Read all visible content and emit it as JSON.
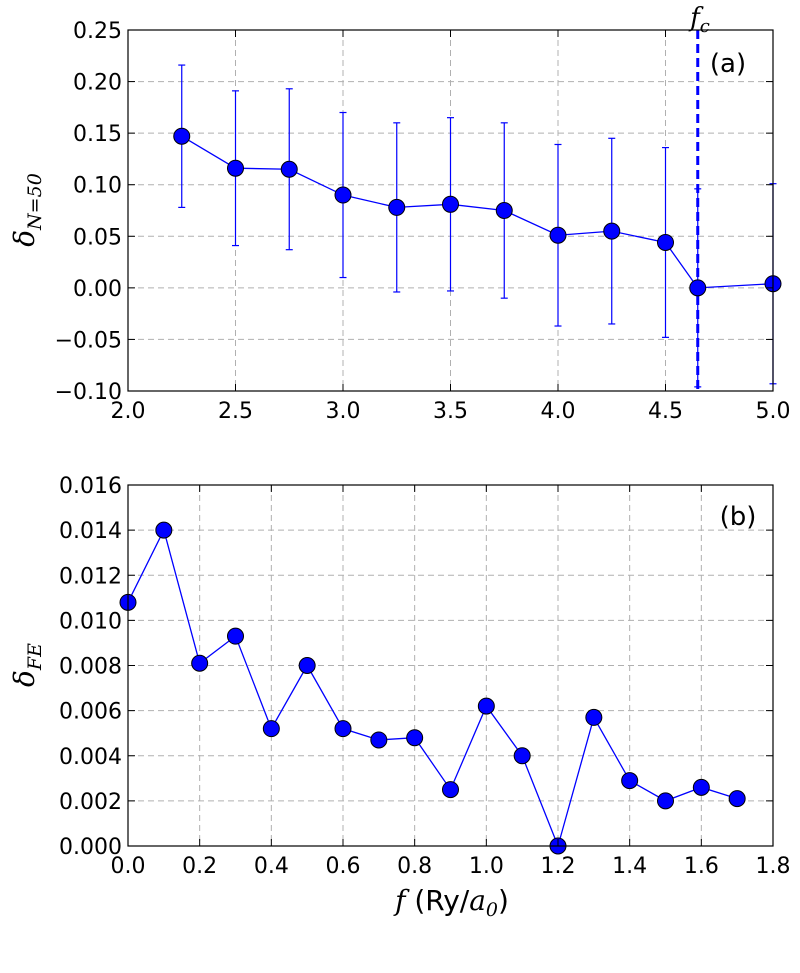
{
  "chart_data": [
    {
      "panel": "(a)",
      "type": "line",
      "ylabel": {
        "base": "δ",
        "sub": "N=50"
      },
      "xlim": [
        2.0,
        5.0
      ],
      "ylim": [
        -0.1,
        0.25
      ],
      "xticks": [
        "2.0",
        "2.5",
        "3.0",
        "3.5",
        "4.0",
        "4.5",
        "5.0"
      ],
      "yticks": [
        "−0.10",
        "−0.05",
        "0.00",
        "0.05",
        "0.10",
        "0.15",
        "0.20",
        "0.25"
      ],
      "grid": true,
      "color": "#0000ff",
      "x": [
        2.25,
        2.5,
        2.75,
        3.0,
        3.25,
        3.5,
        3.75,
        4.0,
        4.25,
        4.5,
        4.65,
        5.0
      ],
      "y": [
        0.147,
        0.116,
        0.115,
        0.09,
        0.078,
        0.081,
        0.075,
        0.051,
        0.055,
        0.044,
        0.0,
        0.004
      ],
      "yerr": [
        0.069,
        0.075,
        0.078,
        0.08,
        0.082,
        0.084,
        0.085,
        0.088,
        0.09,
        0.092,
        0.096,
        0.097
      ],
      "vline": {
        "x": 4.65,
        "label_base": "f",
        "label_sub": "c"
      }
    },
    {
      "panel": "(b)",
      "type": "line",
      "ylabel": {
        "base": "δ",
        "sub": "FE"
      },
      "xlabel": {
        "var": "f",
        "unit_prefix": "(Ry/",
        "unit_var": "a",
        "unit_sub": "0",
        "unit_suffix": ")"
      },
      "xlim": [
        0.0,
        1.8
      ],
      "ylim": [
        0.0,
        0.016
      ],
      "xticks": [
        "0.0",
        "0.2",
        "0.4",
        "0.6",
        "0.8",
        "1.0",
        "1.2",
        "1.4",
        "1.6",
        "1.8"
      ],
      "yticks": [
        "0.000",
        "0.002",
        "0.004",
        "0.006",
        "0.008",
        "0.010",
        "0.012",
        "0.014",
        "0.016"
      ],
      "grid": true,
      "color": "#0000ff",
      "x": [
        0.0,
        0.1,
        0.2,
        0.3,
        0.4,
        0.5,
        0.6,
        0.7,
        0.8,
        0.9,
        1.0,
        1.1,
        1.2,
        1.3,
        1.4,
        1.5,
        1.6,
        1.7
      ],
      "y": [
        0.0108,
        0.014,
        0.0081,
        0.0093,
        0.0052,
        0.008,
        0.0052,
        0.0047,
        0.0048,
        0.0025,
        0.0062,
        0.004,
        0.0,
        0.0057,
        0.0029,
        0.002,
        0.0026,
        0.0021
      ]
    }
  ]
}
